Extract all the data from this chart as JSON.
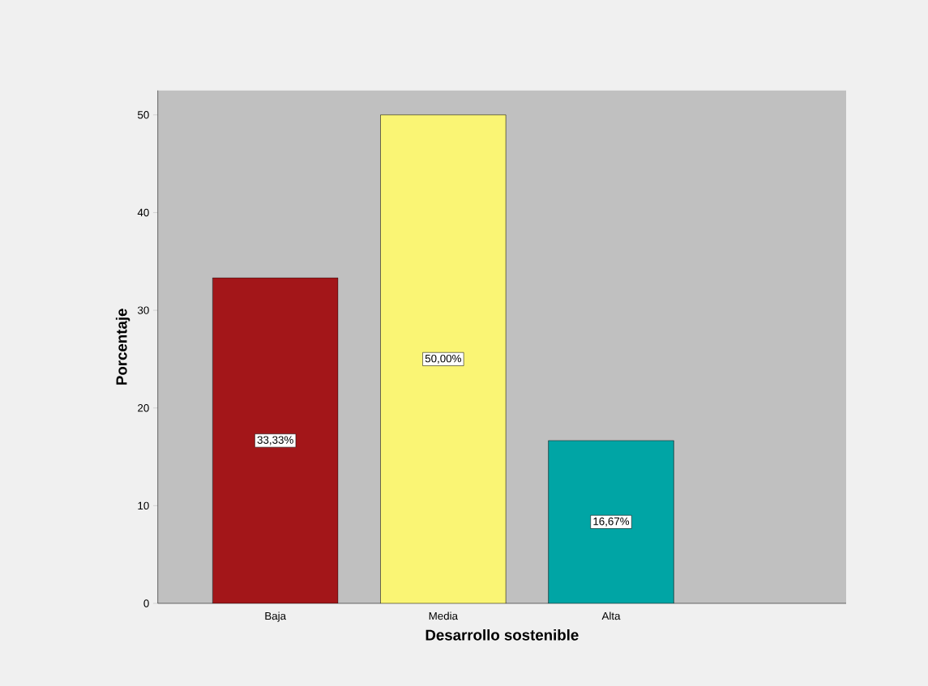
{
  "chart_data": {
    "type": "bar",
    "xlabel": "Desarrollo sostenible",
    "ylabel": "Porcentaje",
    "categories": [
      "Baja",
      "Media",
      "Alta"
    ],
    "values": [
      33.33,
      50.0,
      16.67
    ],
    "colors": [
      "#a31619",
      "#faf574",
      "#00a5a5"
    ],
    "value_labels": [
      "33,33%",
      "50,00%",
      "16,67%"
    ],
    "ylim": [
      0,
      52.5
    ],
    "yticks": [
      0,
      10,
      20,
      30,
      40,
      50
    ],
    "grid": false
  }
}
